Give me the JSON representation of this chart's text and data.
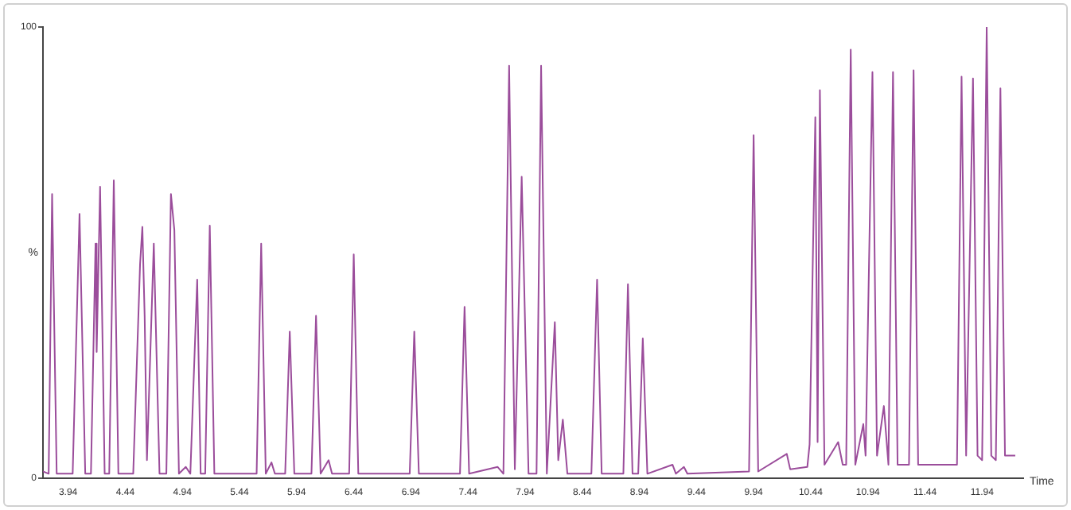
{
  "chart_data": {
    "type": "line",
    "xlabel": "Time",
    "ylabel": "%",
    "marker": "none",
    "grid": false,
    "legend": false,
    "xlim": [
      3.72,
      12.3
    ],
    "ylim": [
      0,
      100
    ],
    "xticks": [
      3.94,
      4.44,
      4.94,
      5.44,
      5.94,
      6.44,
      6.94,
      7.44,
      7.94,
      8.44,
      8.94,
      9.44,
      9.94,
      10.44,
      10.94,
      11.44,
      11.94
    ],
    "yticks": [
      0,
      100
    ],
    "series": [
      {
        "color": "#9b4d9b",
        "x": [
          3.72,
          3.77,
          3.8,
          3.84,
          3.98,
          4.04,
          4.09,
          4.14,
          4.18,
          4.19,
          4.22,
          4.26,
          4.3,
          4.34,
          4.38,
          4.51,
          4.57,
          4.59,
          4.61,
          4.63,
          4.69,
          4.74,
          4.8,
          4.84,
          4.87,
          4.91,
          4.97,
          5.01,
          5.07,
          5.1,
          5.14,
          5.18,
          5.22,
          5.59,
          5.63,
          5.67,
          5.72,
          5.75,
          5.84,
          5.88,
          5.92,
          6.07,
          6.11,
          6.15,
          6.22,
          6.25,
          6.4,
          6.44,
          6.48,
          6.93,
          6.97,
          7.01,
          7.37,
          7.41,
          7.45,
          7.7,
          7.75,
          7.8,
          7.85,
          7.91,
          7.97,
          8.04,
          8.08,
          8.13,
          8.2,
          8.23,
          8.27,
          8.31,
          8.52,
          8.57,
          8.61,
          8.8,
          8.84,
          8.88,
          8.93,
          8.97,
          9.01,
          9.23,
          9.26,
          9.33,
          9.36,
          9.9,
          9.94,
          9.98,
          10.23,
          10.26,
          10.41,
          10.43,
          10.48,
          10.5,
          10.52,
          10.56,
          10.68,
          10.72,
          10.75,
          10.79,
          10.83,
          10.9,
          10.92,
          10.98,
          11.02,
          11.08,
          11.12,
          11.16,
          11.2,
          11.3,
          11.34,
          11.38,
          11.72,
          11.76,
          11.8,
          11.86,
          11.9,
          11.94,
          11.98,
          12.02,
          12.06,
          12.1,
          12.14,
          12.23
        ],
        "values": [
          1.5,
          1,
          63,
          1,
          1,
          58.6,
          1,
          1,
          52,
          28,
          64.6,
          1,
          1,
          66,
          1,
          1,
          47.5,
          55.7,
          36,
          4,
          52,
          1,
          1,
          63,
          55,
          1,
          2.5,
          1,
          44,
          1,
          1,
          56,
          1,
          1,
          52,
          1,
          3.5,
          1,
          1,
          32.5,
          1,
          1,
          36,
          1,
          4,
          1,
          1,
          49.6,
          1,
          1,
          32.5,
          1,
          1,
          38,
          1,
          2.5,
          1,
          91.4,
          2,
          66.8,
          1,
          1,
          91.4,
          1,
          34.6,
          4,
          13,
          1,
          1,
          44,
          1,
          1,
          43,
          1,
          1,
          31,
          1,
          3,
          1,
          2.5,
          1,
          1.5,
          76,
          1.5,
          5.4,
          2,
          2.5,
          7.5,
          80,
          8,
          86,
          3,
          8,
          3,
          3,
          95,
          3,
          12,
          5,
          90,
          5,
          16,
          3,
          90,
          3,
          3,
          90.4,
          3,
          3,
          89,
          5,
          88.6,
          5,
          4,
          100,
          5,
          4,
          86.4,
          5,
          5
        ]
      }
    ]
  }
}
